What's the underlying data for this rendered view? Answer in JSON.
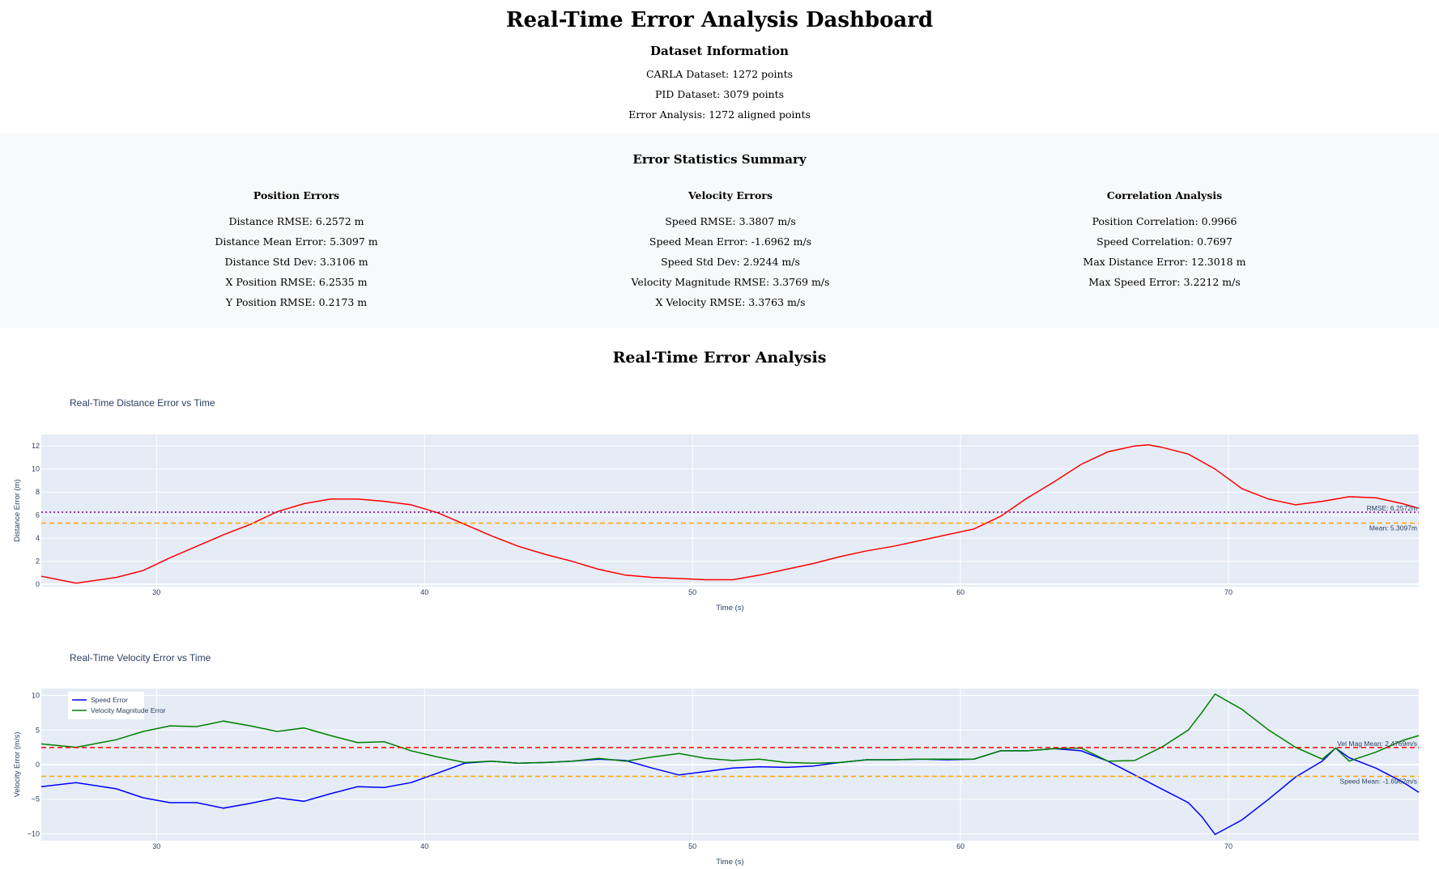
{
  "header": {
    "title": "Real-Time Error Analysis Dashboard",
    "dataset_title": "Dataset Information",
    "dataset_lines": [
      "CARLA Dataset: 1272 points",
      "PID Dataset: 3079 points",
      "Error Analysis: 1272 aligned points"
    ]
  },
  "stats": {
    "title": "Error Statistics Summary",
    "columns": [
      {
        "heading": "Position Errors",
        "items": [
          "Distance RMSE: 6.2572 m",
          "Distance Mean Error: 5.3097 m",
          "Distance Std Dev: 3.3106 m",
          "X Position RMSE: 6.2535 m",
          "Y Position RMSE: 0.2173 m"
        ]
      },
      {
        "heading": "Velocity Errors",
        "items": [
          "Speed RMSE: 3.3807 m/s",
          "Speed Mean Error: -1.6962 m/s",
          "Speed Std Dev: 2.9244 m/s",
          "Velocity Magnitude RMSE: 3.3769 m/s",
          "X Velocity RMSE: 3.3763 m/s"
        ]
      },
      {
        "heading": "Correlation Analysis",
        "items": [
          "Position Correlation: 0.9966",
          "Speed Correlation: 0.7697",
          "Max Distance Error: 12.3018 m",
          "Max Speed Error: 3.2212 m/s"
        ]
      }
    ]
  },
  "section_title": "Real-Time Error Analysis",
  "colors": {
    "plot_bg": "#e5ecf6",
    "distance": "#ff0000",
    "speed": "#0000ff",
    "velmag": "#008000",
    "rmse_line": "#800080",
    "mean_line": "#ffa500",
    "velmag_mean_line": "#ff0000"
  },
  "chart_data": [
    {
      "type": "line",
      "title": "Real-Time Distance Error vs Time",
      "xlabel": "Time (s)",
      "ylabel": "Distance Error (m)",
      "xlim": [
        25.7,
        77.1
      ],
      "ylim": [
        -0.2,
        13.0
      ],
      "xticks": [
        30,
        40,
        50,
        60,
        70
      ],
      "yticks": [
        0,
        2,
        4,
        6,
        8,
        10,
        12
      ],
      "grid": true,
      "series": [
        {
          "x": [
            25.7,
            27.0,
            28.5,
            29.5,
            30.5,
            31.5,
            32.5,
            33.5,
            34.5,
            35.5,
            36.5,
            37.5,
            38.5,
            39.5,
            40.5,
            41.5,
            42.5,
            43.5,
            44.5,
            45.5,
            46.5,
            47.5,
            48.5,
            49.5,
            50.5,
            51.5,
            52.5,
            53.5,
            54.5,
            55.5,
            56.5,
            57.5,
            58.5,
            59.5,
            60.5,
            61.5,
            62.5,
            63.5,
            64.5,
            65.5,
            66.5,
            67.0,
            67.5,
            68.5,
            69.5,
            70.5,
            71.5,
            72.5,
            73.5,
            74.5,
            75.5,
            76.5,
            77.1
          ],
          "y": [
            0.7,
            0.1,
            0.6,
            1.2,
            2.3,
            3.3,
            4.3,
            5.2,
            6.3,
            7.0,
            7.4,
            7.4,
            7.2,
            6.9,
            6.2,
            5.2,
            4.2,
            3.3,
            2.6,
            2.0,
            1.3,
            0.8,
            0.6,
            0.5,
            0.4,
            0.4,
            0.8,
            1.3,
            1.8,
            2.4,
            2.9,
            3.3,
            3.8,
            4.3,
            4.8,
            5.9,
            7.5,
            8.9,
            10.4,
            11.5,
            12.0,
            12.1,
            11.9,
            11.3,
            10.0,
            8.3,
            7.4,
            6.9,
            7.2,
            7.6,
            7.5,
            7.0,
            6.6
          ]
        }
      ],
      "ref_lines": [
        {
          "y": 6.2572,
          "label": "RMSE: 6.2572m"
        },
        {
          "y": 5.3097,
          "label": "Mean: 5.3097m"
        }
      ]
    },
    {
      "type": "line",
      "title": "Real-Time Velocity Error vs Time",
      "xlabel": "Time (s)",
      "ylabel": "Velocity Error (m/s)",
      "xlim": [
        25.7,
        77.1
      ],
      "ylim": [
        -11,
        11
      ],
      "xticks": [
        30,
        40,
        50,
        60,
        70
      ],
      "yticks": [
        -10,
        -5,
        0,
        5,
        10
      ],
      "grid": true,
      "legend_position": "top-left",
      "series": [
        {
          "name": "Speed Error",
          "x": [
            25.7,
            27.0,
            28.5,
            29.5,
            30.5,
            31.5,
            32.5,
            33.5,
            34.5,
            35.5,
            36.5,
            37.5,
            38.5,
            39.5,
            40.5,
            41.5,
            42.5,
            43.5,
            44.5,
            45.5,
            46.5,
            47.5,
            48.5,
            49.5,
            50.5,
            51.5,
            52.5,
            53.5,
            54.5,
            55.5,
            56.5,
            57.5,
            58.5,
            59.5,
            60.5,
            61.5,
            62.5,
            63.5,
            64.5,
            65.5,
            66.5,
            67.5,
            68.5,
            69.0,
            69.5,
            70.5,
            71.5,
            72.5,
            73.5,
            74.0,
            74.5,
            75.5,
            76.5,
            77.1
          ],
          "y": [
            -3.2,
            -2.6,
            -3.5,
            -4.8,
            -5.5,
            -5.5,
            -6.3,
            -5.6,
            -4.8,
            -5.3,
            -4.2,
            -3.2,
            -3.3,
            -2.6,
            -1.2,
            0.2,
            0.5,
            0.2,
            0.3,
            0.5,
            0.8,
            0.6,
            -0.5,
            -1.5,
            -1.0,
            -0.5,
            -0.3,
            -0.4,
            -0.2,
            0.3,
            0.7,
            0.7,
            0.8,
            0.7,
            0.8,
            2.0,
            2.0,
            2.3,
            2.0,
            0.5,
            -1.5,
            -3.5,
            -5.5,
            -7.5,
            -10.1,
            -8.0,
            -5.0,
            -1.8,
            0.5,
            2.4,
            1.0,
            -0.5,
            -2.5,
            -4.0
          ]
        },
        {
          "name": "Velocity Magnitude Error",
          "x": [
            25.7,
            27.0,
            28.5,
            29.5,
            30.5,
            31.5,
            32.5,
            33.5,
            34.5,
            35.5,
            36.5,
            37.5,
            38.5,
            39.5,
            40.5,
            41.5,
            42.5,
            43.5,
            44.5,
            45.5,
            46.5,
            47.5,
            48.5,
            49.5,
            50.5,
            51.5,
            52.5,
            53.5,
            54.5,
            55.5,
            56.5,
            57.5,
            58.5,
            59.5,
            60.5,
            61.5,
            62.5,
            63.5,
            64.5,
            65.5,
            66.5,
            67.5,
            68.5,
            69.0,
            69.5,
            70.5,
            71.5,
            72.5,
            73.5,
            74.0,
            74.5,
            75.5,
            76.5,
            77.1
          ],
          "y": [
            3.0,
            2.5,
            3.6,
            4.8,
            5.6,
            5.5,
            6.3,
            5.6,
            4.8,
            5.3,
            4.2,
            3.2,
            3.3,
            2.0,
            1.1,
            0.3,
            0.5,
            0.2,
            0.3,
            0.5,
            0.9,
            0.5,
            1.1,
            1.6,
            0.9,
            0.6,
            0.8,
            0.3,
            0.2,
            0.3,
            0.7,
            0.7,
            0.8,
            0.8,
            0.8,
            2.0,
            2.0,
            2.3,
            2.4,
            0.5,
            0.6,
            2.5,
            5.0,
            7.5,
            10.2,
            8.0,
            5.0,
            2.5,
            0.8,
            2.4,
            0.5,
            1.8,
            3.5,
            4.2
          ]
        }
      ],
      "ref_lines": [
        {
          "y": 2.4769,
          "label": "Vel Mag Mean: 2.4769m/s"
        },
        {
          "y": -1.6962,
          "label": "Speed Mean: -1.6962m/s"
        }
      ]
    }
  ]
}
